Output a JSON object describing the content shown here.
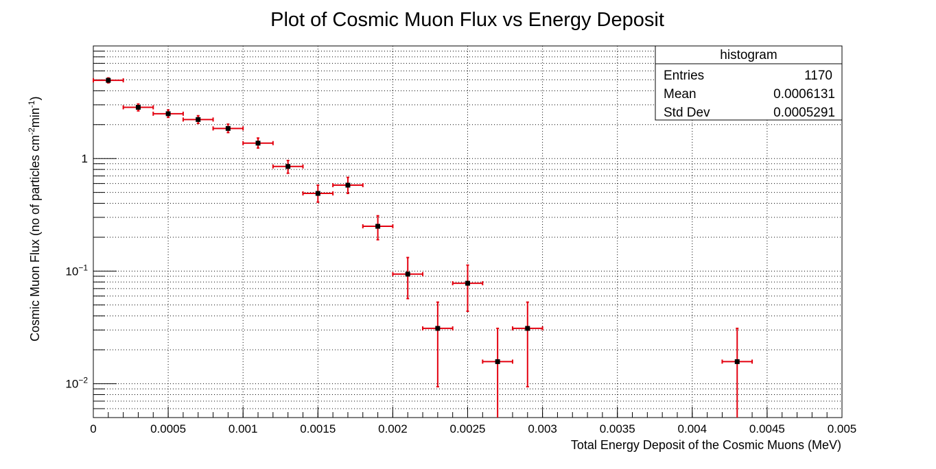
{
  "chart_data": {
    "type": "scatter",
    "title": "Plot of Cosmic Muon Flux  vs Energy Deposit",
    "xlabel": "Total Energy Deposit of the Cosmic Muons (MeV)",
    "ylabel": {
      "text": "Cosmic Muon Flux (no of particles cm",
      "sup1": "-2",
      "mid": "min",
      "sup2": "-1",
      "end": ")"
    },
    "xlim": [
      0,
      0.005
    ],
    "ylim": [
      0.005,
      10
    ],
    "y_scale": "log",
    "grid": true,
    "x_ticks": [
      {
        "value": 0,
        "label": "0"
      },
      {
        "value": 0.0005,
        "label": "0.0005"
      },
      {
        "value": 0.001,
        "label": "0.001"
      },
      {
        "value": 0.0015,
        "label": "0.0015"
      },
      {
        "value": 0.002,
        "label": "0.002"
      },
      {
        "value": 0.0025,
        "label": "0.0025"
      },
      {
        "value": 0.003,
        "label": "0.003"
      },
      {
        "value": 0.0035,
        "label": "0.0035"
      },
      {
        "value": 0.004,
        "label": "0.004"
      },
      {
        "value": 0.0045,
        "label": "0.0045"
      },
      {
        "value": 0.005,
        "label": "0.005"
      }
    ],
    "y_ticks": [
      {
        "value": 1,
        "base": "1",
        "exp": ""
      },
      {
        "value": 0.1,
        "base": "10",
        "exp": "−1"
      },
      {
        "value": 0.01,
        "base": "10",
        "exp": "−2"
      }
    ],
    "bin_width": 0.0002,
    "points": [
      {
        "x": 0.0001,
        "y": 4.95,
        "ylo": 4.7,
        "yhi": 5.2
      },
      {
        "x": 0.0003,
        "y": 2.85,
        "ylo": 2.65,
        "yhi": 3.05
      },
      {
        "x": 0.0005,
        "y": 2.5,
        "ylo": 2.32,
        "yhi": 2.7
      },
      {
        "x": 0.0007,
        "y": 2.22,
        "ylo": 2.05,
        "yhi": 2.4
      },
      {
        "x": 0.0009,
        "y": 1.85,
        "ylo": 1.7,
        "yhi": 2.02
      },
      {
        "x": 0.0011,
        "y": 1.37,
        "ylo": 1.24,
        "yhi": 1.52
      },
      {
        "x": 0.0013,
        "y": 0.85,
        "ylo": 0.74,
        "yhi": 0.96
      },
      {
        "x": 0.0015,
        "y": 0.49,
        "ylo": 0.41,
        "yhi": 0.58
      },
      {
        "x": 0.0017,
        "y": 0.58,
        "ylo": 0.49,
        "yhi": 0.68
      },
      {
        "x": 0.0019,
        "y": 0.25,
        "ylo": 0.19,
        "yhi": 0.31
      },
      {
        "x": 0.0021,
        "y": 0.094,
        "ylo": 0.057,
        "yhi": 0.132
      },
      {
        "x": 0.0023,
        "y": 0.031,
        "ylo": 0.0094,
        "yhi": 0.053
      },
      {
        "x": 0.0025,
        "y": 0.078,
        "ylo": 0.044,
        "yhi": 0.113
      },
      {
        "x": 0.0027,
        "y": 0.0157,
        "ylo": 0.005,
        "yhi": 0.031
      },
      {
        "x": 0.0029,
        "y": 0.031,
        "ylo": 0.0094,
        "yhi": 0.053
      },
      {
        "x": 0.0043,
        "y": 0.0157,
        "ylo": 0.005,
        "yhi": 0.031
      }
    ],
    "marker_color": "#000000",
    "error_color": "#e3000f",
    "stats_box": {
      "title": "histogram",
      "rows": [
        {
          "label": "Entries",
          "value": "1170"
        },
        {
          "label": "Mean",
          "value": "0.0006131"
        },
        {
          "label": "Std Dev",
          "value": "0.0005291"
        }
      ]
    }
  }
}
